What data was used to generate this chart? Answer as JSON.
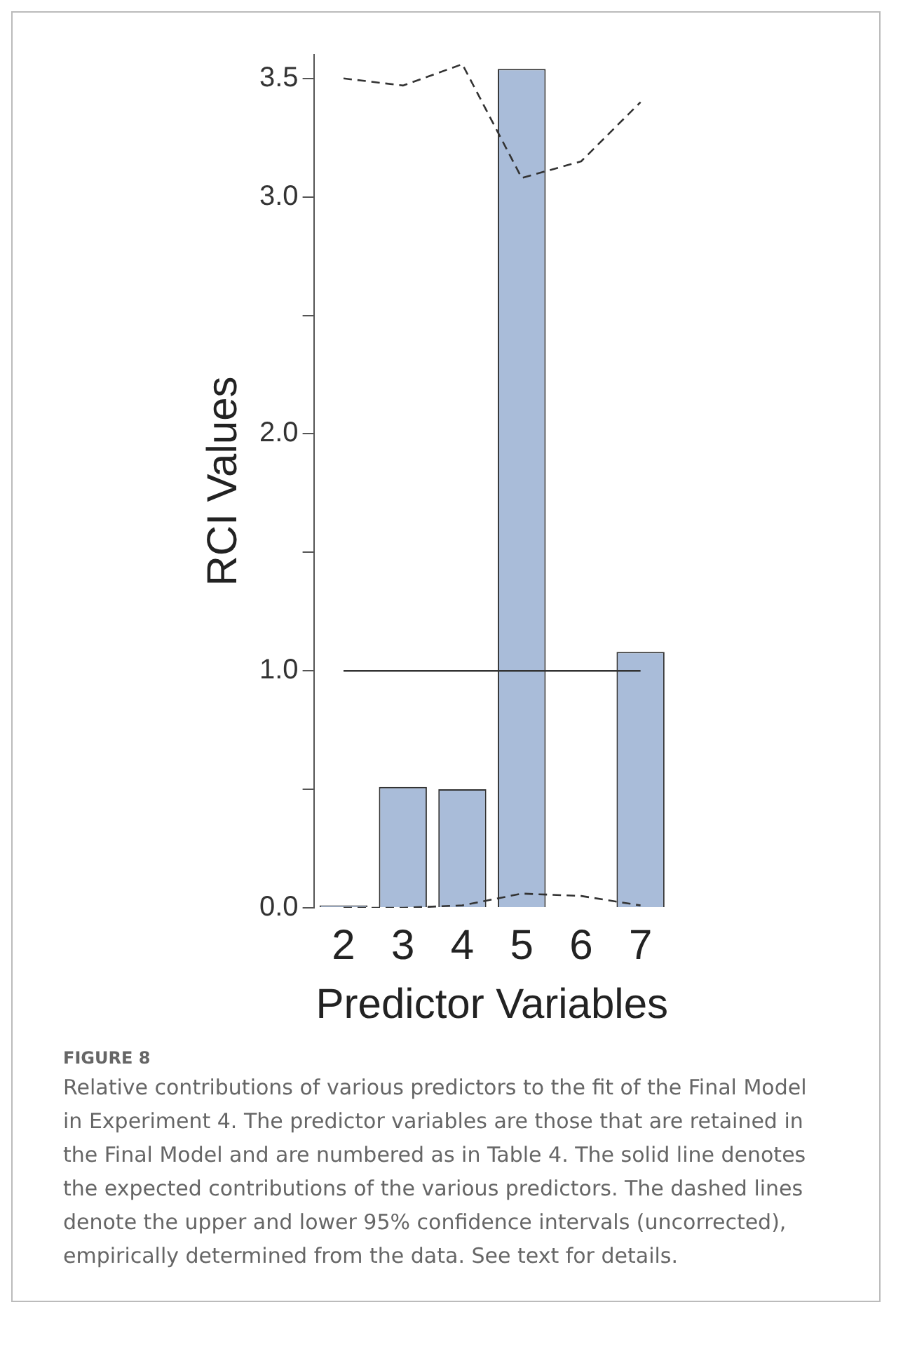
{
  "chart_data": {
    "type": "bar",
    "ylabel": "RCI Values",
    "xlabel": "Predictor Variables",
    "categories": [
      "2",
      "3",
      "4",
      "5",
      "6",
      "7"
    ],
    "series": [
      {
        "color": "#a9bcd9",
        "values": [
          0.01,
          0.51,
          0.5,
          3.54,
          0,
          1.08
        ]
      },
      {
        "type": "line",
        "color": "#333333",
        "line_style": "solid",
        "values": [
          1,
          1,
          1,
          1,
          1,
          1
        ]
      },
      {
        "type": "line",
        "color": "#333333",
        "line_style": "dashed",
        "values": [
          3.5,
          3.47,
          3.56,
          3.08,
          3.15,
          3.4
        ]
      },
      {
        "type": "line",
        "color": "#333333",
        "line_style": "dashed",
        "values": [
          0,
          0,
          0.01,
          0.06,
          0.05,
          0.01
        ]
      }
    ],
    "ylim": [
      0,
      3.6
    ],
    "yticks": [
      {
        "value": 0,
        "label": "0.0"
      },
      {
        "value": 0.5,
        "label": null
      },
      {
        "value": 1,
        "label": "1.0"
      },
      {
        "value": 1.5,
        "label": null
      },
      {
        "value": 2,
        "label": "2.0"
      },
      {
        "value": 2.5,
        "label": null
      },
      {
        "value": 3,
        "label": "3.0"
      },
      3.5
    ],
    "grid": false,
    "legend": false,
    "marker": "none",
    "annotations": [
      "FIGURE 8",
      "Relative contributions of various predictors to the fit of the Final Model in Experiment 4. The predictor variables are those that are retained in the Final Model and are numbered as in Table 4. The solid line denotes the expected contributions of the various predictors. The dashed lines denote the upper and lower 95% confidence intervals (uncorrected), empirically determined from the data. See text for details."
    ]
  }
}
